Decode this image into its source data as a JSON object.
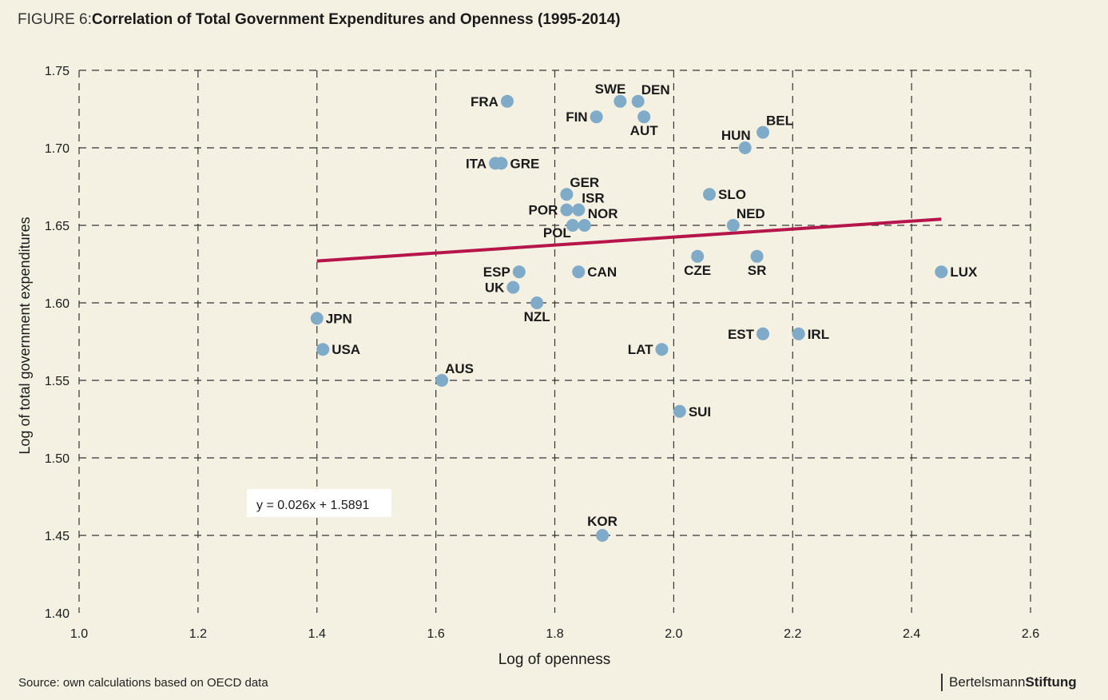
{
  "header": {
    "title_prefix": "FIGURE 6:",
    "title_main": "Correlation of Total Government Expenditures and Openness (1995-2014)"
  },
  "footer": {
    "source": "Source: own calculations based on OECD data",
    "brand_light": "Bertelsmann",
    "brand_bold": "Stiftung"
  },
  "chart_data": {
    "type": "scatter",
    "xlabel": "Log of openness",
    "ylabel": "Log of total government expenditures",
    "xlim": [
      1.0,
      2.6
    ],
    "ylim": [
      1.4,
      1.75
    ],
    "x_ticks": [
      "1.0",
      "1.2",
      "1.4",
      "1.6",
      "1.8",
      "2.0",
      "2.2",
      "2.4",
      "2.6"
    ],
    "y_ticks": [
      "1.40",
      "1.45",
      "1.50",
      "1.55",
      "1.60",
      "1.65",
      "1.70",
      "1.75"
    ],
    "grid": true,
    "point_color": "#7fabc9",
    "trend_color": "#b5154b",
    "trendline": {
      "equation": "y = 0.026x + 1.5891",
      "x_start": 1.4,
      "y_start": 1.627,
      "x_end": 2.45,
      "y_end": 1.654
    },
    "points": [
      {
        "label": "FRA",
        "x": 1.72,
        "y": 1.73,
        "pos": "left"
      },
      {
        "label": "SWE",
        "x": 1.91,
        "y": 1.73,
        "pos": "above-left"
      },
      {
        "label": "DEN",
        "x": 1.94,
        "y": 1.73,
        "pos": "above-right"
      },
      {
        "label": "FIN",
        "x": 1.87,
        "y": 1.72,
        "pos": "left"
      },
      {
        "label": "AUT",
        "x": 1.95,
        "y": 1.72,
        "pos": "below"
      },
      {
        "label": "BEL",
        "x": 2.15,
        "y": 1.71,
        "pos": "above-right"
      },
      {
        "label": "HUN",
        "x": 2.12,
        "y": 1.7,
        "pos": "above-left"
      },
      {
        "label": "ITA",
        "x": 1.7,
        "y": 1.69,
        "pos": "left"
      },
      {
        "label": "GRE",
        "x": 1.71,
        "y": 1.69,
        "pos": "right"
      },
      {
        "label": "GER",
        "x": 1.82,
        "y": 1.67,
        "pos": "above-right"
      },
      {
        "label": "SLO",
        "x": 2.06,
        "y": 1.67,
        "pos": "right"
      },
      {
        "label": "ISR",
        "x": 1.84,
        "y": 1.66,
        "pos": "above-right"
      },
      {
        "label": "POR",
        "x": 1.82,
        "y": 1.66,
        "pos": "left"
      },
      {
        "label": "NOR",
        "x": 1.85,
        "y": 1.65,
        "pos": "above-right"
      },
      {
        "label": "POL",
        "x": 1.83,
        "y": 1.65,
        "pos": "below-left"
      },
      {
        "label": "NED",
        "x": 2.1,
        "y": 1.65,
        "pos": "above-right"
      },
      {
        "label": "CZE",
        "x": 2.04,
        "y": 1.63,
        "pos": "below"
      },
      {
        "label": "SR",
        "x": 2.14,
        "y": 1.63,
        "pos": "below"
      },
      {
        "label": "ESP",
        "x": 1.74,
        "y": 1.62,
        "pos": "left"
      },
      {
        "label": "CAN",
        "x": 1.84,
        "y": 1.62,
        "pos": "right"
      },
      {
        "label": "LUX",
        "x": 2.45,
        "y": 1.62,
        "pos": "right"
      },
      {
        "label": "UK",
        "x": 1.73,
        "y": 1.61,
        "pos": "left"
      },
      {
        "label": "NZL",
        "x": 1.77,
        "y": 1.6,
        "pos": "below"
      },
      {
        "label": "JPN",
        "x": 1.4,
        "y": 1.59,
        "pos": "right"
      },
      {
        "label": "EST",
        "x": 2.15,
        "y": 1.58,
        "pos": "left"
      },
      {
        "label": "IRL",
        "x": 2.21,
        "y": 1.58,
        "pos": "right"
      },
      {
        "label": "USA",
        "x": 1.41,
        "y": 1.57,
        "pos": "right"
      },
      {
        "label": "LAT",
        "x": 1.98,
        "y": 1.57,
        "pos": "left"
      },
      {
        "label": "AUS",
        "x": 1.61,
        "y": 1.55,
        "pos": "above-right"
      },
      {
        "label": "SUI",
        "x": 2.01,
        "y": 1.53,
        "pos": "right"
      },
      {
        "label": "KOR",
        "x": 1.88,
        "y": 1.45,
        "pos": "above"
      }
    ]
  }
}
